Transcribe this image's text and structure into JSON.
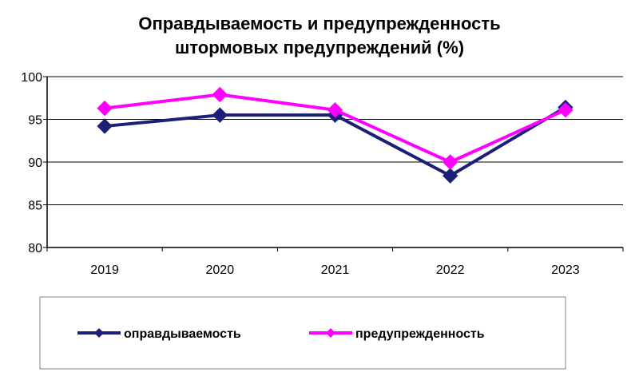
{
  "chart_data": {
    "type": "line",
    "title_lines": [
      "Оправдываемость и предупрежденность",
      "штормовых предупреждений (%)"
    ],
    "x": [
      "2019",
      "2020",
      "2021",
      "2022",
      "2023"
    ],
    "ylim": [
      80,
      100
    ],
    "yticks": [
      "80",
      "85",
      "90",
      "95",
      "100"
    ],
    "grid": true,
    "legend_position": "bottom",
    "series": [
      {
        "name": "оправдываемость",
        "color": "#1c1f78",
        "marker": "diamond",
        "values": [
          94.2,
          95.5,
          95.5,
          88.4,
          96.4
        ]
      },
      {
        "name": "предупрежденность",
        "color": "#ff00ff",
        "marker": "diamond",
        "values": [
          96.3,
          97.9,
          96.1,
          90.0,
          96.1
        ]
      }
    ]
  }
}
